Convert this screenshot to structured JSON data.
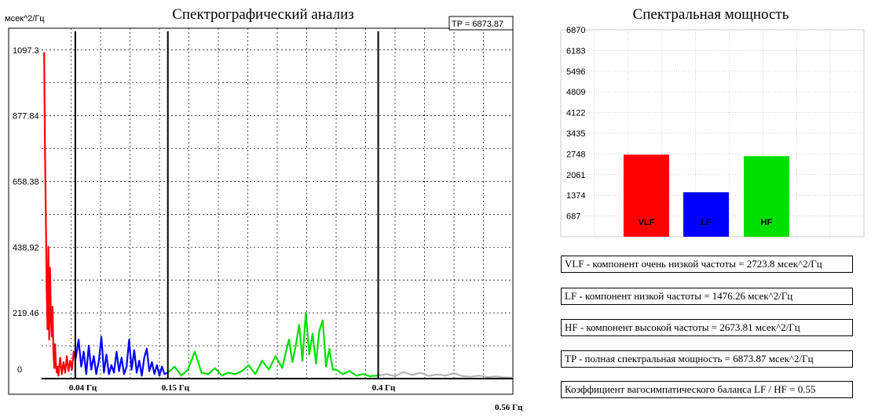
{
  "spectrogram": {
    "title": "Спектрографический анализ",
    "y_unit": "мсек^2/Гц",
    "tp_label": "TP = 6873.87",
    "x_max_label": "0.56 Гц"
  },
  "power_panel": {
    "title": "Спектральная мощность",
    "info_lines": [
      "VLF - компонент очень низкой частоты = 2723.8 мсек^2/Гц",
      "LF - компонент низкой частоты = 1476.26 мсек^2/Гц",
      "HF - компонент высокой частоты = 2673.81 мсек^2/Гц",
      "TP - полная спектральная мощность  = 6873.87 мсек^2/Гц",
      "Коэффициент вагосимпатического баланса LF / HF = 0.55"
    ]
  },
  "chart_data": [
    {
      "type": "line",
      "title": "Спектрографический анализ",
      "ylabel": "мсек^2/Гц",
      "xlim": [
        0,
        0.56
      ],
      "ylim": [
        0,
        1170
      ],
      "y_ticks": [
        "0",
        "219.46",
        "438.92",
        "658.38",
        "877.84",
        "1097.3"
      ],
      "y_tick_values": [
        0,
        219.46,
        438.92,
        658.38,
        877.84,
        1097.3
      ],
      "band_boundaries": [
        {
          "x": 0.04,
          "label": "0.04 Гц"
        },
        {
          "x": 0.15,
          "label": "0.15 Гц"
        },
        {
          "x": 0.4,
          "label": "0.4 Гц"
        }
      ],
      "grid": true,
      "series": [
        {
          "band": "VLF",
          "color": "#ff0000",
          "x": [
            0.003,
            0.004,
            0.005,
            0.006,
            0.007,
            0.008,
            0.009,
            0.01,
            0.011,
            0.012,
            0.013,
            0.014,
            0.015,
            0.016,
            0.017,
            0.018,
            0.019,
            0.02,
            0.022,
            0.024,
            0.026,
            0.028,
            0.03,
            0.032,
            0.034,
            0.036,
            0.038,
            0.04
          ],
          "y": [
            1090,
            760,
            540,
            300,
            165,
            440,
            130,
            370,
            210,
            140,
            240,
            90,
            35,
            115,
            45,
            20,
            40,
            10,
            70,
            15,
            55,
            20,
            75,
            25,
            60,
            30,
            90,
            60
          ]
        },
        {
          "band": "LF",
          "color": "#0000ff",
          "x": [
            0.04,
            0.044,
            0.047,
            0.05,
            0.053,
            0.056,
            0.059,
            0.062,
            0.065,
            0.068,
            0.071,
            0.074,
            0.077,
            0.08,
            0.083,
            0.086,
            0.089,
            0.092,
            0.095,
            0.098,
            0.101,
            0.104,
            0.107,
            0.11,
            0.113,
            0.116,
            0.119,
            0.122,
            0.125,
            0.128,
            0.131,
            0.134,
            0.137,
            0.14,
            0.143,
            0.146,
            0.15
          ],
          "y": [
            60,
            130,
            40,
            90,
            15,
            110,
            30,
            75,
            15,
            60,
            140,
            20,
            80,
            15,
            45,
            20,
            90,
            25,
            70,
            15,
            40,
            130,
            30,
            95,
            20,
            60,
            10,
            70,
            100,
            25,
            55,
            15,
            45,
            10,
            40,
            15,
            20
          ]
        },
        {
          "band": "HF",
          "color": "#00e000",
          "x": [
            0.15,
            0.158,
            0.166,
            0.174,
            0.182,
            0.19,
            0.198,
            0.206,
            0.214,
            0.222,
            0.23,
            0.238,
            0.246,
            0.254,
            0.262,
            0.27,
            0.278,
            0.286,
            0.29,
            0.294,
            0.298,
            0.302,
            0.306,
            0.31,
            0.314,
            0.318,
            0.322,
            0.326,
            0.33,
            0.334,
            0.338,
            0.342,
            0.346,
            0.35,
            0.358,
            0.366,
            0.374,
            0.382,
            0.39,
            0.4
          ],
          "y": [
            20,
            40,
            10,
            30,
            90,
            20,
            15,
            35,
            10,
            20,
            15,
            25,
            45,
            15,
            60,
            30,
            75,
            35,
            85,
            130,
            55,
            110,
            180,
            60,
            220,
            80,
            150,
            50,
            160,
            195,
            40,
            100,
            30,
            30,
            15,
            25,
            10,
            15,
            8,
            10
          ]
        },
        {
          "band": "above 0.4",
          "color": "#b4b4b4",
          "x": [
            0.4,
            0.41,
            0.42,
            0.43,
            0.44,
            0.45,
            0.46,
            0.47,
            0.48,
            0.49,
            0.5,
            0.51,
            0.52,
            0.53,
            0.54,
            0.55,
            0.56
          ],
          "y": [
            10,
            15,
            8,
            22,
            12,
            20,
            9,
            14,
            10,
            18,
            8,
            6,
            10,
            5,
            7,
            4,
            3
          ]
        }
      ]
    },
    {
      "type": "bar",
      "title": "Спектральная мощность",
      "categories": [
        "VLF",
        "LF",
        "HF"
      ],
      "values": [
        2723.8,
        1476.26,
        2673.81
      ],
      "colors": [
        "#ff0000",
        "#0000ff",
        "#00e000"
      ],
      "ylim": [
        0,
        6870
      ],
      "y_ticks": [
        "687",
        "1374",
        "2061",
        "2748",
        "3435",
        "4122",
        "4809",
        "5496",
        "6183",
        "6870"
      ],
      "grid": true
    }
  ]
}
